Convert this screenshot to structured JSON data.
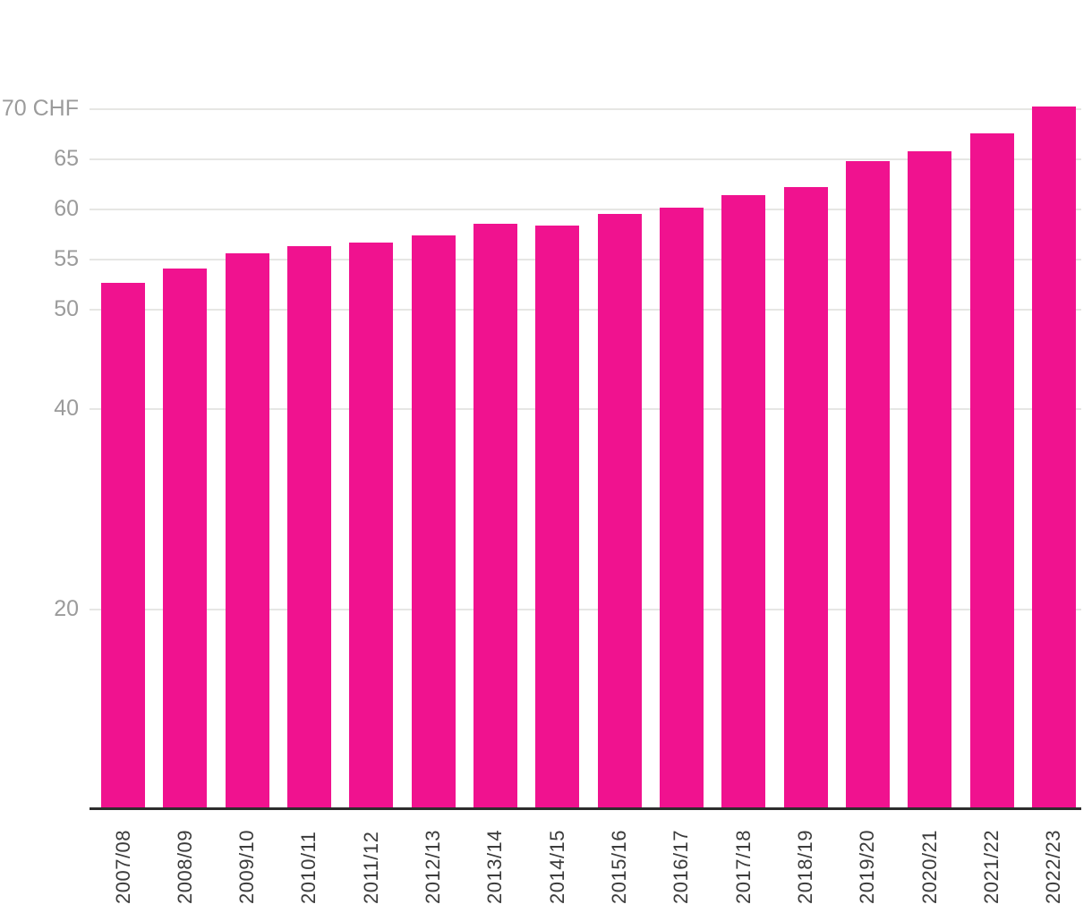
{
  "chart_data": {
    "type": "bar",
    "title": "",
    "unit": "CHF",
    "categories": [
      "2007/08",
      "2008/09",
      "2009/10",
      "2010/11",
      "2011/12",
      "2012/13",
      "2013/14",
      "2014/15",
      "2015/16",
      "2016/17",
      "2017/18",
      "2018/19",
      "2019/20",
      "2020/21",
      "2021/22",
      "2022/23"
    ],
    "values": [
      52.6,
      54.1,
      55.6,
      56.3,
      56.7,
      57.4,
      58.5,
      58.4,
      59.5,
      60.1,
      61.4,
      62.2,
      64.8,
      65.8,
      67.6,
      70.2
    ],
    "y_ticks": [
      {
        "value": 70,
        "label": "70 CHF"
      },
      {
        "value": 65,
        "label": "65"
      },
      {
        "value": 60,
        "label": "60"
      },
      {
        "value": 55,
        "label": "55"
      },
      {
        "value": 50,
        "label": "50"
      },
      {
        "value": 40,
        "label": "40"
      },
      {
        "value": 20,
        "label": "20"
      }
    ],
    "ylim": [
      0,
      70.2
    ],
    "grid": true,
    "legend_position": "none",
    "xlabel": "",
    "ylabel": ""
  },
  "colors": {
    "bar": "#F0128F",
    "grid_line": "#E6E6E4",
    "axis_line": "#2D2D2D",
    "y_label": "#9B9B9B",
    "x_label": "#3B3B3B",
    "background": "#FFFFFF"
  }
}
